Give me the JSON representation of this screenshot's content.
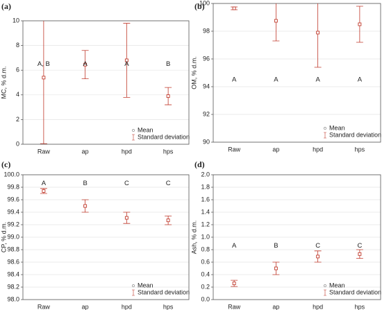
{
  "chart_data": [
    {
      "type": "errorbar",
      "panel_label": "(a)",
      "ylabel": "MC, % d.m.",
      "categories": [
        "Raw",
        "ap",
        "hpd",
        "hps"
      ],
      "series": [
        {
          "name": "Mean",
          "color": "#c0392b",
          "values": [
            5.4,
            6.45,
            6.8,
            3.9
          ],
          "errors": [
            5.35,
            1.15,
            3.0,
            0.7
          ]
        }
      ],
      "error_name": "Standard deviation",
      "letters": [
        "A, B",
        "A",
        "A",
        "B"
      ],
      "ylim": [
        0,
        10
      ],
      "yticks": [
        0,
        2,
        4,
        6,
        8,
        10
      ],
      "grid": true
    },
    {
      "type": "errorbar",
      "panel_label": "(b)",
      "ylabel": "OM, % d.m.",
      "categories": [
        "Raw",
        "ap",
        "hpd",
        "hps"
      ],
      "series": [
        {
          "name": "Mean",
          "color": "#c0392b",
          "values": [
            99.65,
            98.75,
            97.9,
            98.5
          ],
          "errors": [
            0.1,
            1.45,
            2.5,
            1.3
          ]
        }
      ],
      "error_name": "Standard deviation",
      "letters": [
        "A",
        "A",
        "A",
        "A"
      ],
      "ylim": [
        90,
        100
      ],
      "yticks": [
        90,
        92,
        94,
        96,
        98,
        100
      ],
      "grid": true
    },
    {
      "type": "errorbar",
      "panel_label": "(c)",
      "ylabel": "CP, % d.m.",
      "categories": [
        "Raw",
        "ap",
        "hpd",
        "hps"
      ],
      "series": [
        {
          "name": "Mean",
          "color": "#c0392b",
          "values": [
            99.74,
            99.5,
            99.31,
            99.27
          ],
          "errors": [
            0.04,
            0.1,
            0.09,
            0.07
          ]
        }
      ],
      "error_name": "Standard deviation",
      "letters": [
        "A",
        "B",
        "C",
        "C"
      ],
      "ylim": [
        98.0,
        100.0
      ],
      "yticks": [
        {
          "value": 98,
          "label": "98.0"
        },
        98.2,
        98.4,
        98.6,
        98.8,
        {
          "value": 99,
          "label": "99.0"
        },
        99.2,
        99.4,
        99.6,
        99.8,
        {
          "value": 100,
          "label": "100.0"
        }
      ],
      "grid": true
    },
    {
      "type": "errorbar",
      "panel_label": "(d)",
      "ylabel": "Ash, % d.m.",
      "categories": [
        "Raw",
        "ap",
        "hpd",
        "hps"
      ],
      "series": [
        {
          "name": "Mean",
          "color": "#c0392b",
          "values": [
            0.26,
            0.5,
            0.69,
            0.73
          ],
          "errors": [
            0.05,
            0.1,
            0.09,
            0.07
          ]
        }
      ],
      "error_name": "Standard deviation",
      "letters": [
        "A",
        "B",
        "C",
        "C"
      ],
      "ylim": [
        0,
        2.0
      ],
      "yticks": [
        {
          "value": 0,
          "label": "0.0"
        },
        0.2,
        0.4,
        0.6,
        0.8,
        {
          "value": 1,
          "label": "1.0"
        },
        1.2,
        1.4,
        1.6,
        1.8,
        {
          "value": 2,
          "label": "2.0"
        }
      ],
      "grid": true
    }
  ]
}
